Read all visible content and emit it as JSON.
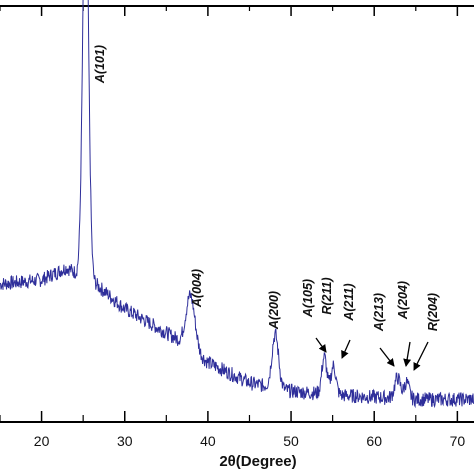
{
  "chart_data": {
    "type": "line",
    "title": "",
    "xlabel": "2θ(Degree)",
    "ylabel": "",
    "xlim": [
      15,
      72
    ],
    "ylim": [
      0,
      1
    ],
    "x_ticks": [
      20,
      30,
      40,
      50,
      60,
      70
    ],
    "x_tick_labels": [
      "20",
      "30",
      "40",
      "50",
      "60",
      "70"
    ],
    "grid": false,
    "line_color": "#2e2e9a",
    "series": [
      {
        "peaks": [
          {
            "x": 25.3,
            "height": 0.98,
            "width": 0.35
          },
          {
            "x": 37.9,
            "height": 0.13,
            "width": 0.55
          },
          {
            "x": 48.1,
            "height": 0.13,
            "width": 0.4
          },
          {
            "x": 54.0,
            "height": 0.09,
            "width": 0.3
          },
          {
            "x": 55.1,
            "height": 0.07,
            "width": 0.3
          },
          {
            "x": 62.8,
            "height": 0.05,
            "width": 0.35
          },
          {
            "x": 63.9,
            "height": 0.04,
            "width": 0.3
          }
        ],
        "background": [
          {
            "x": 15.0,
            "y": 0.33
          },
          {
            "x": 20.0,
            "y": 0.34
          },
          {
            "x": 23.0,
            "y": 0.37
          },
          {
            "x": 26.5,
            "y": 0.33
          },
          {
            "x": 30.0,
            "y": 0.27
          },
          {
            "x": 36.0,
            "y": 0.2
          },
          {
            "x": 40.0,
            "y": 0.14
          },
          {
            "x": 45.0,
            "y": 0.09
          },
          {
            "x": 50.0,
            "y": 0.07
          },
          {
            "x": 56.0,
            "y": 0.06
          },
          {
            "x": 65.0,
            "y": 0.05
          },
          {
            "x": 72.0,
            "y": 0.05
          }
        ]
      }
    ],
    "annotations": [
      {
        "text": "A(101)",
        "x": 25.3
      },
      {
        "text": "A(004)",
        "x": 37.9
      },
      {
        "text": "A(200)",
        "x": 48.1
      },
      {
        "text": "A(105)",
        "x": 53.9
      },
      {
        "text": "R(211)",
        "x": 54.4,
        "arrow": true
      },
      {
        "text": "A(211)",
        "x": 55.1,
        "arrow": true
      },
      {
        "text": "A(213)",
        "x": 62.1,
        "arrow": true
      },
      {
        "text": "A(204)",
        "x": 62.7,
        "arrow": true
      },
      {
        "text": "R(204)",
        "x": 64.1,
        "arrow": true
      }
    ]
  }
}
